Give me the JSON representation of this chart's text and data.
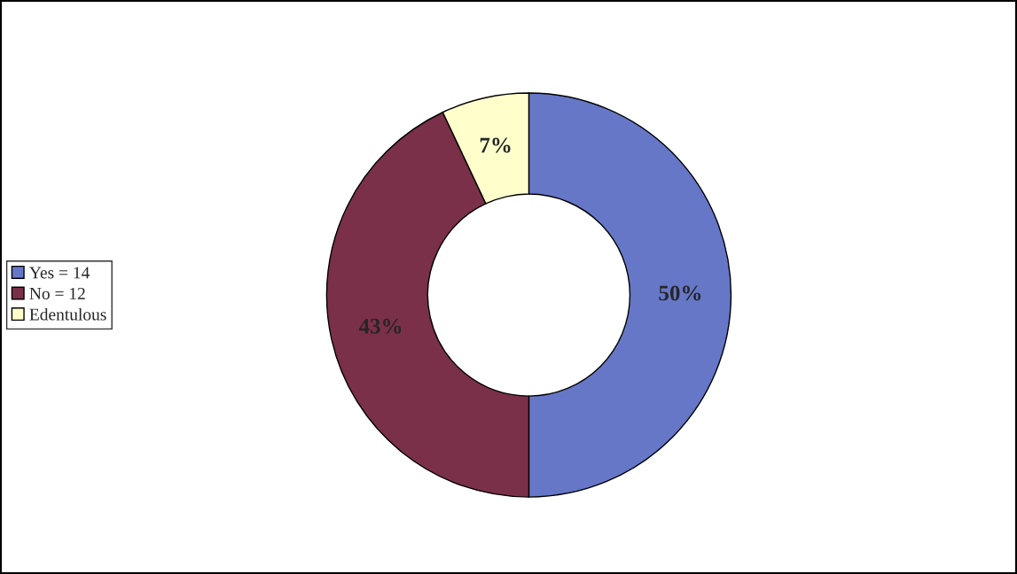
{
  "chart_data": {
    "type": "donut",
    "categories": [
      "Yes = 14",
      "No = 12",
      "Edentulous"
    ],
    "values": [
      50,
      43,
      7
    ],
    "colors": [
      "#6677c8",
      "#7a3048",
      "#ffffcc"
    ],
    "value_labels": [
      "50%",
      "43%",
      "7%"
    ],
    "legend": "left"
  }
}
